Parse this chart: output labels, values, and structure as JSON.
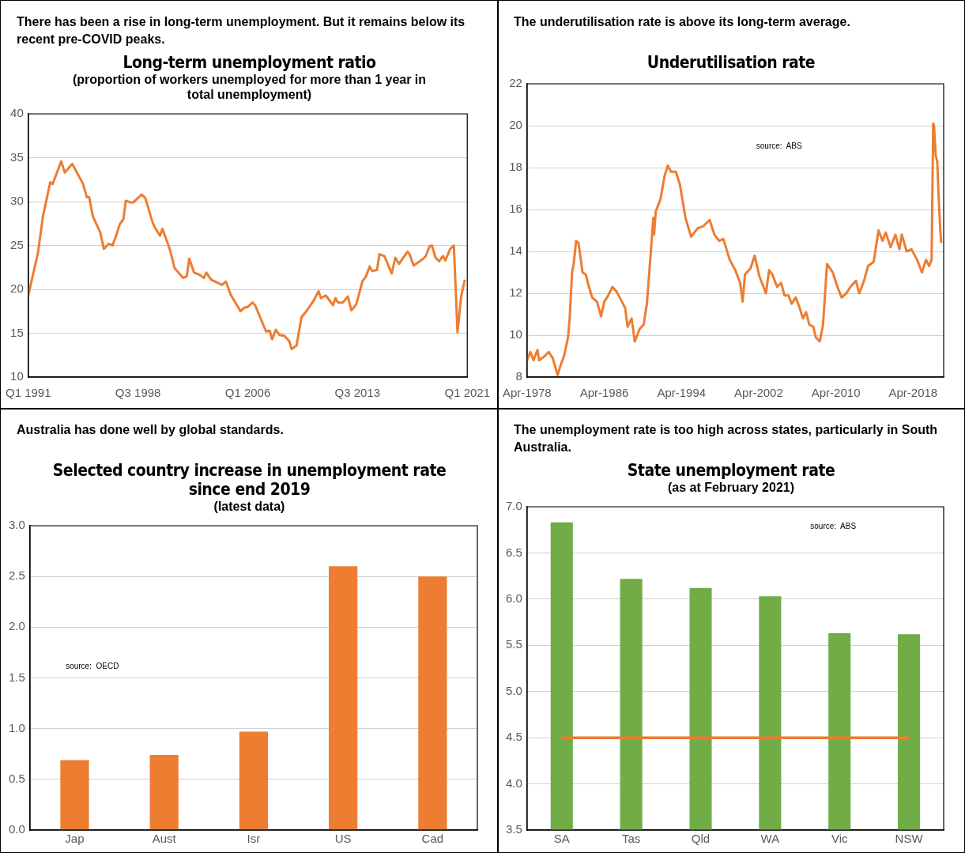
{
  "chart_data": [
    {
      "type": "line",
      "title": "Long-term unemployment ratio",
      "subtitle": "(proportion  of workers unemployed for more than 1 year in total unemployment)",
      "annotations": [
        "There has been a rise in long-term unemployment. But it remains below its recent pre-COVID peaks."
      ],
      "color": "#ed7d31",
      "grid": "y",
      "marker": "none",
      "line_style": "solid",
      "x": [
        "1991-01",
        "1991-09",
        "1992-01",
        "1992-07",
        "1992-09",
        "1993-04",
        "1993-07",
        "1994-01",
        "1994-10",
        "1995-01",
        "1995-03",
        "1995-06",
        "1995-12",
        "1996-03",
        "1996-07",
        "1996-10",
        "1997-01",
        "1997-04",
        "1997-07",
        "1997-09",
        "1998-01",
        "1998-03",
        "1998-10",
        "1999-01",
        "1999-07",
        "1999-09",
        "2000-01",
        "2000-03",
        "2000-09",
        "2001-01",
        "2001-08",
        "2001-11",
        "2002-01",
        "2002-05",
        "2002-09",
        "2003-01",
        "2003-03",
        "2003-07",
        "2004-04",
        "2004-07",
        "2004-11",
        "2005-07",
        "2005-10",
        "2006-01",
        "2006-05",
        "2006-07",
        "2007-04",
        "2007-07",
        "2007-09",
        "2007-12",
        "2008-03",
        "2008-07",
        "2008-11",
        "2009-01",
        "2009-05",
        "2009-09",
        "2010-01",
        "2010-05",
        "2010-07",
        "2010-11",
        "2011-01",
        "2011-05",
        "2011-11",
        "2012-01",
        "2012-03",
        "2012-07",
        "2012-11",
        "2013-02",
        "2013-06",
        "2013-11",
        "2014-02",
        "2014-05",
        "2014-07",
        "2014-11",
        "2015-01",
        "2015-05",
        "2015-11",
        "2016-02",
        "2016-05",
        "2016-07",
        "2016-12",
        "2017-02",
        "2017-05",
        "2018-01",
        "2018-03",
        "2018-06",
        "2018-08",
        "2018-11",
        "2019-02",
        "2019-05",
        "2019-07",
        "2019-11",
        "2020-02",
        "2020-05",
        "2020-08",
        "2020-11"
      ],
      "values": [
        19.3,
        24.2,
        28.3,
        32.2,
        32.0,
        34.6,
        33.3,
        34.3,
        32.0,
        30.5,
        30.5,
        28.3,
        26.5,
        24.6,
        25.2,
        25.0,
        26.1,
        27.4,
        28.0,
        30.1,
        29.9,
        29.9,
        30.8,
        30.4,
        27.6,
        27.0,
        26.1,
        26.9,
        24.6,
        22.4,
        21.3,
        21.5,
        23.5,
        21.9,
        21.7,
        21.3,
        21.9,
        21.1,
        20.5,
        20.9,
        19.4,
        17.5,
        17.9,
        18.0,
        18.5,
        18.2,
        15.2,
        15.3,
        14.3,
        15.4,
        14.8,
        14.7,
        14.1,
        13.2,
        13.6,
        16.8,
        17.5,
        18.3,
        18.7,
        19.8,
        19.0,
        19.3,
        18.2,
        19.0,
        18.5,
        18.5,
        19.2,
        17.6,
        18.3,
        20.9,
        21.5,
        22.6,
        22.1,
        22.2,
        24.0,
        23.8,
        21.8,
        23.6,
        22.9,
        23.3,
        24.3,
        23.9,
        22.7,
        23.5,
        23.8,
        24.9,
        25.0,
        23.6,
        23.2,
        23.8,
        23.3,
        24.6,
        25.0,
        15.1,
        19.2,
        21.1
      ],
      "xlim": [
        "1991-01",
        "2021-01"
      ],
      "xticks": [
        {
          "value": "1991-01",
          "label": "Q1 1991"
        },
        {
          "value": "1998-07",
          "label": "Q3 1998"
        },
        {
          "value": "2006-01",
          "label": "Q1 2006"
        },
        {
          "value": "2013-07",
          "label": "Q3 2013"
        },
        {
          "value": "2021-01",
          "label": "Q1 2021"
        }
      ],
      "ylim": [
        10,
        40
      ],
      "yticks": [
        10,
        15,
        20,
        25,
        30,
        35,
        40
      ]
    },
    {
      "type": "line",
      "title": "Underutilisation rate",
      "annotations": [
        "The underutilisation rate is above its long-term average.",
        "source:  ABS"
      ],
      "color": "#ed7d31",
      "grid": "y",
      "marker": "none",
      "line_style": "solid",
      "x": [
        "1978-04",
        "1978-08",
        "1978-12",
        "1979-05",
        "1979-07",
        "1980-02",
        "1980-07",
        "1980-12",
        "1981-03",
        "1981-06",
        "1981-10",
        "1982-02",
        "1982-07",
        "1982-09",
        "1982-12",
        "1983-02",
        "1983-05",
        "1983-08",
        "1984-01",
        "1984-05",
        "1984-09",
        "1985-01",
        "1985-07",
        "1985-12",
        "1986-04",
        "1986-09",
        "1987-02",
        "1987-07",
        "1988-02",
        "1988-06",
        "1988-09",
        "1989-02",
        "1989-06",
        "1989-12",
        "1990-05",
        "1990-09",
        "1990-12",
        "1991-05",
        "1991-06",
        "1991-08",
        "1992-02",
        "1992-07",
        "1992-11",
        "1993-03",
        "1993-09",
        "1994-02",
        "1994-09",
        "1995-04",
        "1995-12",
        "1996-07",
        "1997-03",
        "1997-09",
        "1998-03",
        "1998-08",
        "1999-04",
        "1999-11",
        "2000-05",
        "2000-08",
        "2000-11",
        "2001-06",
        "2001-11",
        "2002-05",
        "2003-01",
        "2003-05",
        "2003-09",
        "2004-03",
        "2004-08",
        "2004-12",
        "2005-05",
        "2005-09",
        "2006-02",
        "2006-07",
        "2006-11",
        "2007-03",
        "2007-07",
        "2007-12",
        "2008-03",
        "2008-08",
        "2008-12",
        "2009-05",
        "2009-12",
        "2010-06",
        "2010-11",
        "2011-05",
        "2011-10",
        "2012-05",
        "2012-09",
        "2013-03",
        "2013-08",
        "2014-03",
        "2014-09",
        "2015-02",
        "2015-06",
        "2015-12",
        "2016-06",
        "2016-11",
        "2017-02",
        "2017-08",
        "2018-02",
        "2018-09",
        "2019-03",
        "2019-08",
        "2019-12",
        "2020-03",
        "2020-05",
        "2020-06",
        "2020-08",
        "2020-10",
        "2020-12",
        "2021-02",
        "2021-03"
      ],
      "values": [
        8.8,
        9.2,
        8.8,
        9.3,
        8.8,
        9.0,
        9.2,
        8.9,
        8.5,
        8.1,
        8.6,
        9.0,
        9.9,
        10.8,
        13.0,
        13.4,
        14.5,
        14.4,
        13.0,
        12.9,
        12.3,
        11.8,
        11.6,
        10.9,
        11.6,
        11.9,
        12.3,
        12.1,
        11.6,
        11.3,
        10.4,
        10.8,
        9.7,
        10.3,
        10.5,
        11.5,
        13.0,
        15.6,
        14.8,
        15.9,
        16.5,
        17.6,
        18.1,
        17.8,
        17.8,
        17.2,
        15.6,
        14.7,
        15.1,
        15.2,
        15.5,
        14.8,
        14.5,
        14.6,
        13.6,
        13.1,
        12.5,
        11.6,
        12.9,
        13.2,
        13.8,
        12.8,
        12.0,
        13.1,
        12.9,
        12.3,
        12.5,
        11.9,
        11.9,
        11.5,
        11.8,
        11.3,
        10.8,
        11.1,
        10.5,
        10.4,
        9.9,
        9.7,
        10.5,
        13.4,
        13.0,
        12.3,
        11.8,
        12.0,
        12.3,
        12.6,
        12.0,
        12.6,
        13.3,
        13.5,
        15.0,
        14.5,
        14.9,
        14.2,
        14.8,
        14.1,
        14.8,
        14.0,
        14.1,
        13.6,
        13.0,
        13.6,
        13.3,
        13.6,
        20.1,
        20.0,
        18.6,
        18.3,
        16.4,
        14.9,
        14.4
      ],
      "xlim": [
        "1978-04",
        "2021-06"
      ],
      "xticks": [
        {
          "value": "1978-04",
          "label": "Apr-1978"
        },
        {
          "value": "1986-04",
          "label": "Apr-1986"
        },
        {
          "value": "1994-04",
          "label": "Apr-1994"
        },
        {
          "value": "2002-04",
          "label": "Apr-2002"
        },
        {
          "value": "2010-04",
          "label": "Apr-2010"
        },
        {
          "value": "2018-04",
          "label": "Apr-2018"
        }
      ],
      "ylim": [
        8,
        22
      ],
      "yticks": [
        8,
        10,
        12,
        14,
        16,
        18,
        20,
        22
      ]
    },
    {
      "type": "bar",
      "title": "Selected country increase in unemployment rate since end 2019",
      "subtitle": "(latest data)",
      "annotations": [
        "Australia has done well by global standards.",
        "source:  OECD"
      ],
      "color": "#ed7d31",
      "grid": "y",
      "categories": [
        "Jap",
        "Aust",
        "Isr",
        "US",
        "Cad"
      ],
      "values": [
        0.69,
        0.74,
        0.97,
        2.6,
        2.5
      ],
      "ylim": [
        0,
        3
      ],
      "yticks": [
        {
          "value": 0,
          "label": "0.0"
        },
        {
          "value": 0.5,
          "label": "0.5"
        },
        {
          "value": 1,
          "label": "1.0"
        },
        {
          "value": 1.5,
          "label": "1.5"
        },
        {
          "value": 2,
          "label": "2.0"
        },
        {
          "value": 2.5,
          "label": "2.5"
        },
        {
          "value": 3,
          "label": "3.0"
        }
      ]
    },
    {
      "type": "bar",
      "title": "State unemployment rate",
      "subtitle": "(as at February 2021)",
      "annotations": [
        "The unemployment rate is too high across states, particularly in South Australia.",
        "source:  ABS"
      ],
      "color": "#70ad47",
      "grid": "y",
      "categories": [
        "SA",
        "Tas",
        "Qld",
        "WA",
        "Vic",
        "NSW"
      ],
      "values": [
        6.83,
        6.22,
        6.12,
        6.03,
        5.63,
        5.62
      ],
      "ref_lines": [
        {
          "axis": "y",
          "value": 4.5,
          "color": "#ed7d31"
        }
      ],
      "ylim": [
        3.5,
        7
      ],
      "yticks": [
        {
          "value": 3.5,
          "label": "3.5"
        },
        {
          "value": 4,
          "label": "4.0"
        },
        {
          "value": 4.5,
          "label": "4.5"
        },
        {
          "value": 5,
          "label": "5.0"
        },
        {
          "value": 5.5,
          "label": "5.5"
        },
        {
          "value": 6,
          "label": "6.0"
        },
        {
          "value": 6.5,
          "label": "6.5"
        },
        {
          "value": 7,
          "label": "7.0"
        }
      ]
    }
  ]
}
